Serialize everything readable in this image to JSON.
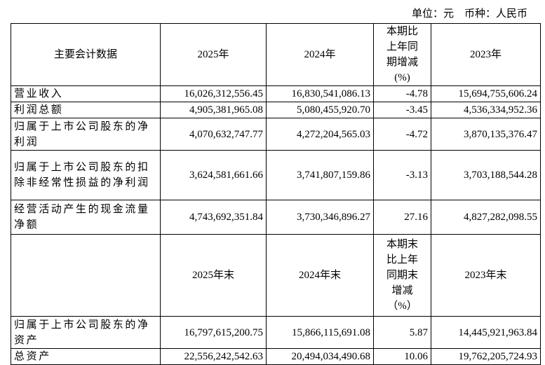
{
  "unit_note": "单位：元　币种：人民币",
  "table": {
    "header": [
      "主要会计数据",
      "2025年",
      "2024年",
      "本期比上年同期增减(%)",
      "2023年"
    ],
    "rows": [
      [
        "营业收入",
        "16,026,312,556.45",
        "16,830,541,086.13",
        "-4.78",
        "15,694,755,606.24"
      ],
      [
        "利润总额",
        "4,905,381,965.08",
        "5,080,455,920.70",
        "-3.45",
        "4,536,334,952.36"
      ],
      [
        "归属于上市公司股东的净利润",
        "4,070,632,747.77",
        "4,272,204,565.03",
        "-4.72",
        "3,870,135,376.47"
      ],
      [
        "归属于上市公司股东的扣除非经常性损益的净利润",
        "3,624,581,661.66",
        "3,741,807,159.86",
        "-3.13",
        "3,703,188,544.28"
      ],
      [
        "经营活动产生的现金流量净额",
        "4,743,692,351.84",
        "3,730,346,896.27",
        "27.16",
        "4,827,282,098.55"
      ]
    ],
    "header2": [
      "2025年末",
      "2024年末",
      "本期末比上年同期末增减（%）",
      "2023年末"
    ],
    "rows2": [
      [
        "归属于上市公司股东的净资产",
        "16,797,615,200.75",
        "15,866,115,691.08",
        "5.87",
        "14,445,921,963.84"
      ],
      [
        "总资产",
        "22,556,242,542.63",
        "20,494,034,490.68",
        "10.06",
        "19,762,205,724.93"
      ]
    ]
  }
}
